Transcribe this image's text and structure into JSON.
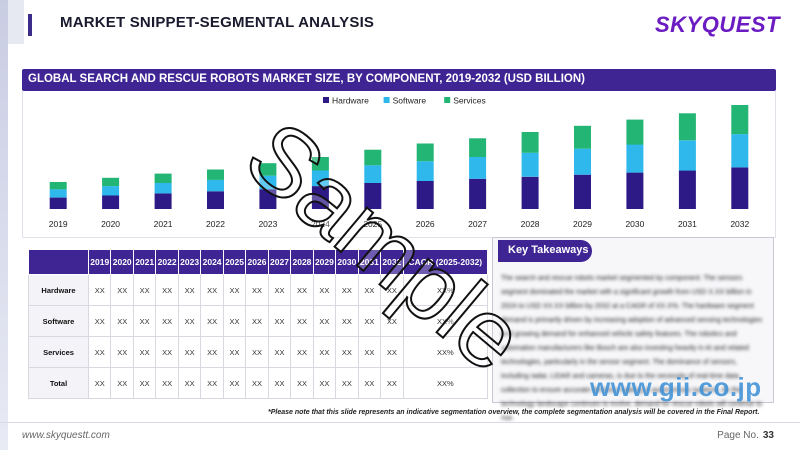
{
  "header": {
    "title": "MARKET SNIPPET-SEGMENTAL ANALYSIS",
    "logo": "SKYQUEST"
  },
  "chart_data": {
    "type": "bar",
    "stacked": true,
    "title": "GLOBAL SEARCH AND RESCUE ROBOTS MARKET SIZE,  BY COMPONENT, 2019-2032 (USD BILLION)",
    "categories": [
      "2019",
      "2020",
      "2021",
      "2022",
      "2023",
      "2024",
      "2025",
      "2026",
      "2027",
      "2028",
      "2029",
      "2030",
      "2031",
      "2032"
    ],
    "series": [
      {
        "name": "Hardware",
        "color": "#2e1a86",
        "values": [
          11,
          13,
          15,
          17,
          19,
          22,
          25,
          27,
          29,
          31,
          33,
          35,
          37,
          40
        ]
      },
      {
        "name": "Software",
        "color": "#2fb8ec",
        "values": [
          8,
          9,
          10,
          11,
          13,
          15,
          17,
          19,
          21,
          23,
          25,
          27,
          29,
          32
        ]
      },
      {
        "name": "Services",
        "color": "#22b573",
        "values": [
          7,
          8,
          9,
          10,
          12,
          13,
          15,
          17,
          18,
          20,
          22,
          24,
          26,
          28
        ]
      }
    ],
    "ylim": [
      0,
      100
    ],
    "legend": "top-center",
    "grid": false
  },
  "table": {
    "headers": [
      "",
      "2019",
      "2020",
      "2021",
      "2022",
      "2023",
      "2024",
      "2025",
      "2026",
      "2027",
      "2028",
      "2029",
      "2030",
      "2031",
      "2032",
      "CAGR (2025-2032)"
    ],
    "rows": [
      {
        "label": "Hardware",
        "cells": [
          "XX",
          "XX",
          "XX",
          "XX",
          "XX",
          "XX",
          "XX",
          "XX",
          "XX",
          "XX",
          "XX",
          "XX",
          "XX",
          "XX",
          "XX%"
        ]
      },
      {
        "label": "Software",
        "cells": [
          "XX",
          "XX",
          "XX",
          "XX",
          "XX",
          "XX",
          "XX",
          "XX",
          "XX",
          "XX",
          "XX",
          "XX",
          "XX",
          "XX",
          "XX%"
        ]
      },
      {
        "label": "Services",
        "cells": [
          "XX",
          "XX",
          "XX",
          "XX",
          "XX",
          "XX",
          "XX",
          "XX",
          "XX",
          "XX",
          "XX",
          "XX",
          "XX",
          "XX",
          "XX%"
        ]
      },
      {
        "label": "Total",
        "cells": [
          "XX",
          "XX",
          "XX",
          "XX",
          "XX",
          "XX",
          "XX",
          "XX",
          "XX",
          "XX",
          "XX",
          "XX",
          "XX",
          "XX",
          "XX%"
        ]
      }
    ]
  },
  "key_takeaways": {
    "title": "Key Takeaways",
    "text": "The search and rescue robots market segmented by component. The sensors segment dominated the market with a significant growth from USD X.XX billion in 2024 to USD XX.XX billion by 2032 at a CAGR of XX.X%. The hardware segment demand is primarily driven by increasing adoption of advanced sensing technologies and growing demand for enhanced vehicle safety features. The robotics and automation manufacturers like Bosch are also investing heavily in AI and related technologies, particularly in the sensor segment. The dominance of sensors, including radar, LiDAR and cameras, is due to the necessity of real-time data collection to ensure accurate decision-making in autonomous systems. As the technology landscape continues to evolve, demand for rescue robots will continue to rise."
  },
  "footnote": "*Please note that this slide represents an indicative segmentation overview, the complete segmentation analysis will be covered in the Final Report.",
  "footer": {
    "website": "www.skyquestt.com",
    "page_label": "Page No.",
    "page_number": "33"
  },
  "watermarks": {
    "sample": "Sample",
    "gii": "www.gii.co.jp"
  }
}
